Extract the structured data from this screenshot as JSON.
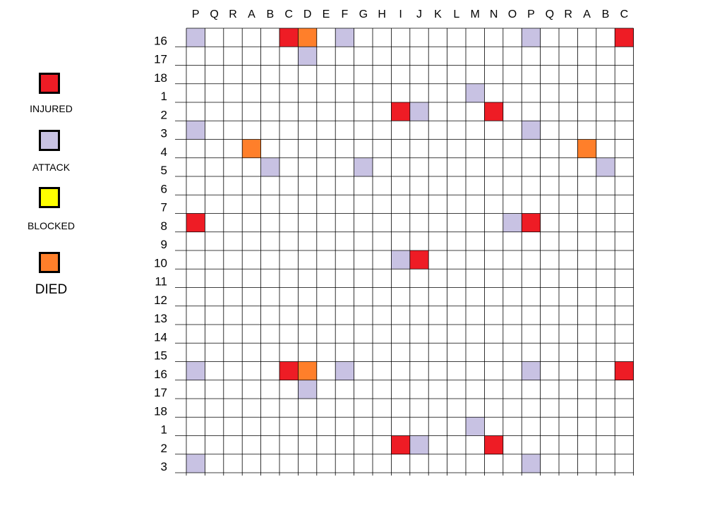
{
  "colors": {
    "injured": "#ee1c25",
    "attack": "#c8c2e3",
    "blocked": "#ffff00",
    "died": "#ff7f2a",
    "grid_line": "#000000"
  },
  "legend": [
    {
      "key": "injured",
      "label": "INJURED"
    },
    {
      "key": "attack",
      "label": "ATTACK"
    },
    {
      "key": "blocked",
      "label": "BLOCKED"
    },
    {
      "key": "died",
      "label": "DIED"
    }
  ],
  "grid": {
    "column_labels": [
      "P",
      "Q",
      "R",
      "A",
      "B",
      "C",
      "D",
      "E",
      "F",
      "G",
      "H",
      "I",
      "J",
      "K",
      "L",
      "M",
      "N",
      "O",
      "P",
      "Q",
      "R",
      "A",
      "B",
      "C"
    ],
    "row_labels": [
      "16",
      "17",
      "18",
      "1",
      "2",
      "3",
      "4",
      "5",
      "6",
      "7",
      "8",
      "9",
      "10",
      "11",
      "12",
      "13",
      "14",
      "15",
      "16",
      "17",
      "18",
      "1",
      "2",
      "3"
    ],
    "cells": [
      {
        "row": 0,
        "col": 0,
        "status": "attack"
      },
      {
        "row": 0,
        "col": 5,
        "status": "injured"
      },
      {
        "row": 0,
        "col": 6,
        "status": "died"
      },
      {
        "row": 0,
        "col": 8,
        "status": "attack"
      },
      {
        "row": 0,
        "col": 18,
        "status": "attack"
      },
      {
        "row": 0,
        "col": 23,
        "status": "injured"
      },
      {
        "row": 1,
        "col": 6,
        "status": "attack"
      },
      {
        "row": 3,
        "col": 15,
        "status": "attack"
      },
      {
        "row": 4,
        "col": 11,
        "status": "injured"
      },
      {
        "row": 4,
        "col": 12,
        "status": "attack"
      },
      {
        "row": 4,
        "col": 16,
        "status": "injured"
      },
      {
        "row": 5,
        "col": 0,
        "status": "attack"
      },
      {
        "row": 5,
        "col": 18,
        "status": "attack"
      },
      {
        "row": 6,
        "col": 3,
        "status": "died"
      },
      {
        "row": 6,
        "col": 21,
        "status": "died"
      },
      {
        "row": 7,
        "col": 4,
        "status": "attack"
      },
      {
        "row": 7,
        "col": 9,
        "status": "attack"
      },
      {
        "row": 7,
        "col": 22,
        "status": "attack"
      },
      {
        "row": 10,
        "col": 0,
        "status": "injured"
      },
      {
        "row": 10,
        "col": 17,
        "status": "attack"
      },
      {
        "row": 10,
        "col": 18,
        "status": "injured"
      },
      {
        "row": 12,
        "col": 11,
        "status": "attack"
      },
      {
        "row": 12,
        "col": 12,
        "status": "injured"
      },
      {
        "row": 18,
        "col": 0,
        "status": "attack"
      },
      {
        "row": 18,
        "col": 5,
        "status": "injured"
      },
      {
        "row": 18,
        "col": 6,
        "status": "died"
      },
      {
        "row": 18,
        "col": 8,
        "status": "attack"
      },
      {
        "row": 18,
        "col": 18,
        "status": "attack"
      },
      {
        "row": 18,
        "col": 23,
        "status": "injured"
      },
      {
        "row": 19,
        "col": 6,
        "status": "attack"
      },
      {
        "row": 21,
        "col": 15,
        "status": "attack"
      },
      {
        "row": 22,
        "col": 11,
        "status": "injured"
      },
      {
        "row": 22,
        "col": 12,
        "status": "attack"
      },
      {
        "row": 22,
        "col": 16,
        "status": "injured"
      },
      {
        "row": 23,
        "col": 0,
        "status": "attack"
      },
      {
        "row": 23,
        "col": 18,
        "status": "attack"
      }
    ]
  }
}
